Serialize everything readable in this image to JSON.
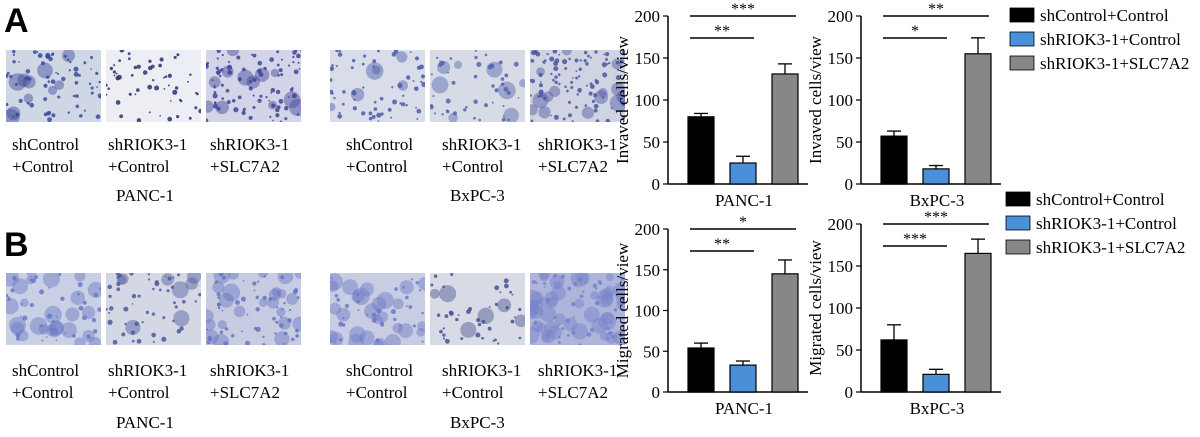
{
  "panels": [
    {
      "letter": "A",
      "micrographs": [
        {
          "cell_line": "PANC-1",
          "captions": [
            "shControl\n+Control",
            "shRIOK3-1\n+Control",
            "shRIOK3-1\n+SLC7A2"
          ]
        },
        {
          "cell_line": "BxPC-3",
          "captions": [
            "shControl\n+Control",
            "shRIOK3-1\n+Control",
            "shRIOK3-1\n+SLC7A2"
          ]
        }
      ]
    },
    {
      "letter": "B",
      "micrographs": [
        {
          "cell_line": "PANC-1",
          "captions": [
            "shControl\n+Control",
            "shRIOK3-1\n+Control",
            "shRIOK3-1\n+SLC7A2"
          ]
        },
        {
          "cell_line": "BxPC-3",
          "captions": [
            "shControl\n+Control",
            "shRIOK3-1\n+Control",
            "shRIOK3-1\n+SLC7A2"
          ]
        }
      ]
    }
  ],
  "colors": {
    "shControl+Control": "#000000",
    "shRIOK3-1+Control": "#4a90d9",
    "shRIOK3-1+SLC7A2": "#878787"
  },
  "legends": [
    [
      "shControl+Control",
      "shRIOK3-1+Control",
      "shRIOK3-1+SLC7A2"
    ],
    [
      "shControl+Control",
      "shRIOK3-1+Control",
      "shRIOK3-1+SLC7A2"
    ]
  ],
  "chart_data": [
    {
      "type": "bar",
      "panel": "A",
      "xlabel": "PANC-1",
      "ylabel": "Invaved cells/view",
      "categories": [
        "shControl+Control",
        "shRIOK3-1+Control",
        "shRIOK3-1+SLC7A2"
      ],
      "values": [
        80,
        25,
        131
      ],
      "errors": [
        4,
        8,
        12
      ],
      "ylim": [
        0,
        200
      ],
      "yticks": [
        0,
        50,
        100,
        150,
        200
      ],
      "significance": [
        {
          "from": 0,
          "to": 1,
          "label": "**"
        },
        {
          "from": 0,
          "to": 2,
          "label": "***"
        }
      ]
    },
    {
      "type": "bar",
      "panel": "A",
      "xlabel": "BxPC-3",
      "ylabel": "Invaved cells/view",
      "categories": [
        "shControl+Control",
        "shRIOK3-1+Control",
        "shRIOK3-1+SLC7A2"
      ],
      "values": [
        57,
        18,
        155
      ],
      "errors": [
        6,
        4,
        19
      ],
      "ylim": [
        0,
        200
      ],
      "yticks": [
        0,
        50,
        100,
        150,
        200
      ],
      "significance": [
        {
          "from": 0,
          "to": 1,
          "label": "*"
        },
        {
          "from": 0,
          "to": 2,
          "label": "**"
        }
      ]
    },
    {
      "type": "bar",
      "panel": "B",
      "xlabel": "PANC-1",
      "ylabel": "Migrated cells/view",
      "categories": [
        "shControl+Control",
        "shRIOK3-1+Control",
        "shRIOK3-1+SLC7A2"
      ],
      "values": [
        54,
        33,
        145
      ],
      "errors": [
        6,
        5,
        17
      ],
      "ylim": [
        0,
        200
      ],
      "yticks": [
        0,
        50,
        100,
        150,
        200
      ],
      "significance": [
        {
          "from": 0,
          "to": 1,
          "label": "**"
        },
        {
          "from": 0,
          "to": 2,
          "label": "*"
        }
      ]
    },
    {
      "type": "bar",
      "panel": "B",
      "xlabel": "BxPC-3",
      "ylabel": "Migrated cells/view",
      "categories": [
        "shControl+Control",
        "shRIOK3-1+Control",
        "shRIOK3-1+SLC7A2"
      ],
      "values": [
        62,
        21,
        165
      ],
      "errors": [
        18,
        6,
        17
      ],
      "ylim": [
        0,
        200
      ],
      "yticks": [
        0,
        50,
        100,
        150,
        200
      ],
      "significance": [
        {
          "from": 0,
          "to": 1,
          "label": "***"
        },
        {
          "from": 0,
          "to": 2,
          "label": "***"
        }
      ]
    }
  ]
}
